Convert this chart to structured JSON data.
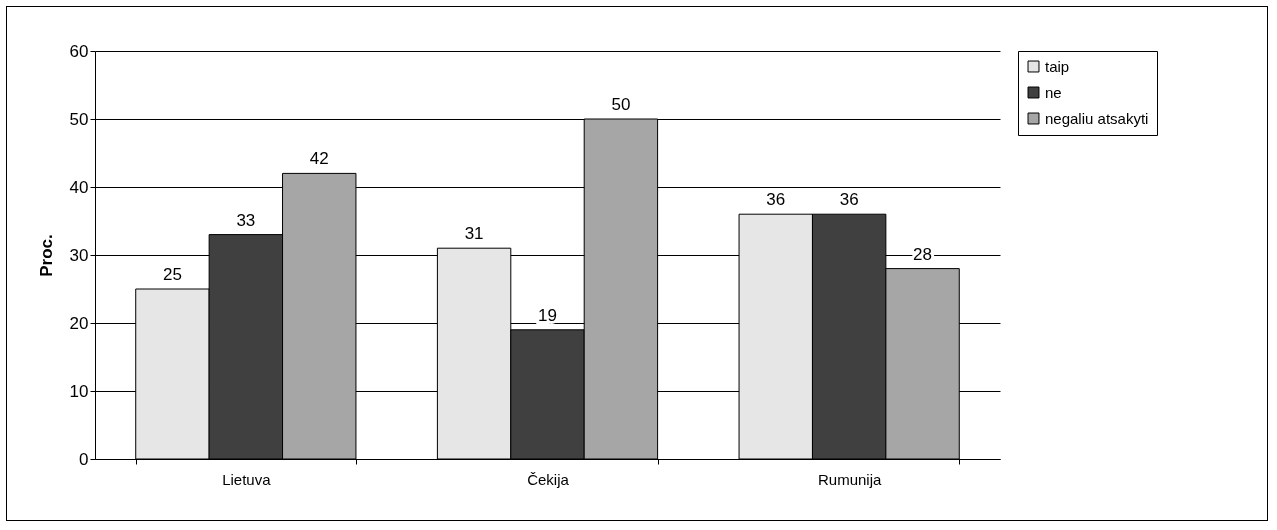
{
  "chart_data": {
    "type": "bar",
    "ylabel": "Proc.",
    "categories": [
      "Lietuva",
      "Čekija",
      "Rumunija"
    ],
    "series": [
      {
        "name": "taip",
        "color": "#e6e6e6",
        "values": [
          25,
          31,
          36
        ]
      },
      {
        "name": "ne",
        "color": "#404040",
        "values": [
          33,
          19,
          36
        ]
      },
      {
        "name": "negaliu atsakyti",
        "color": "#a6a6a6",
        "values": [
          42,
          50,
          28
        ]
      }
    ],
    "ylim": [
      0,
      60
    ],
    "yticks": [
      0,
      10,
      20,
      30,
      40,
      50,
      60
    ],
    "grid": "y",
    "legend": "right",
    "data_labels": true
  }
}
